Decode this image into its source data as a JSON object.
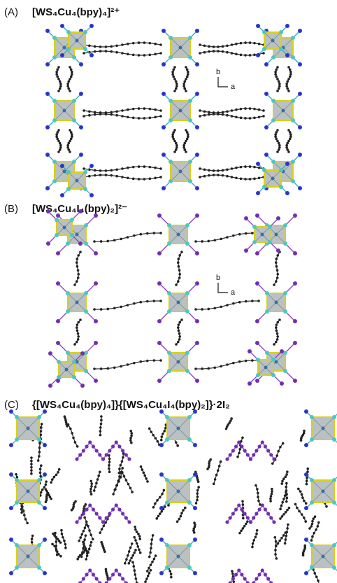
{
  "panels": [
    {
      "label": "(A)",
      "formula": "[WS₄Cu₄(bpy)₄]²⁺",
      "axis_labels": [
        "b",
        "a"
      ]
    },
    {
      "label": "(B)",
      "formula": "[WS₄Cu₄I₄(bpy)₂]²⁻",
      "axis_labels": [
        "b",
        "a"
      ]
    },
    {
      "label": "(C)",
      "formula": "{[WS₄Cu₄(bpy)₄]}{[WS₄Cu₄I₄(bpy)₂]}·2I₂"
    }
  ]
}
